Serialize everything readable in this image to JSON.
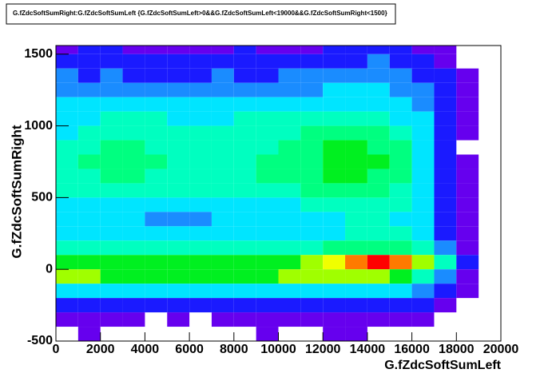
{
  "chart_data": {
    "type": "heatmap",
    "title": "G.fZdcSoftSumRight:G.fZdcSoftSumLeft {G.fZdcSoftSumLeft>0&&G.fZdcSoftSumLeft<19000&&G.fZdcSoftSumRight<1500}",
    "x_label": "G.fZdcSoftSumLeft",
    "y_label": "G.fZdcSoftSumRight",
    "xlim": [
      0,
      20000
    ],
    "ylim": [
      -500,
      1560
    ],
    "xticks": [
      0,
      2000,
      4000,
      6000,
      8000,
      10000,
      12000,
      14000,
      16000,
      18000,
      20000
    ],
    "yticks": [
      -500,
      0,
      500,
      1000,
      1500
    ],
    "xbins": [
      0,
      1000,
      2000,
      3000,
      4000,
      5000,
      6000,
      7000,
      8000,
      9000,
      10000,
      11000,
      12000,
      13000,
      14000,
      15000,
      16000,
      17000,
      18000,
      19000
    ],
    "ybins": [
      1560,
      1500,
      1400,
      1300,
      1200,
      1100,
      1000,
      900,
      800,
      700,
      600,
      500,
      400,
      300,
      200,
      100,
      0,
      -100,
      -200,
      -300,
      -400,
      -500
    ],
    "zlim": [
      0,
      11
    ],
    "palette": [
      "#ffffff",
      "#6600ee",
      "#1a1aff",
      "#1a8cff",
      "#00e5ff",
      "#00ffc0",
      "#00ff80",
      "#00f020",
      "#a0ff00",
      "#f0ff00",
      "#ff7a00",
      "#ff0000"
    ],
    "z": [
      [
        1,
        2,
        2,
        1,
        1,
        1,
        1,
        1,
        2,
        1,
        1,
        1,
        2,
        2,
        2,
        2,
        1,
        1,
        0
      ],
      [
        2,
        2,
        2,
        2,
        2,
        2,
        2,
        2,
        2,
        2,
        2,
        2,
        2,
        2,
        3,
        2,
        2,
        1,
        0
      ],
      [
        3,
        2,
        3,
        2,
        2,
        2,
        2,
        3,
        2,
        2,
        3,
        3,
        3,
        3,
        3,
        3,
        2,
        2,
        1
      ],
      [
        3,
        3,
        3,
        3,
        3,
        3,
        3,
        3,
        3,
        3,
        3,
        3,
        4,
        4,
        4,
        3,
        3,
        2,
        1
      ],
      [
        4,
        4,
        4,
        4,
        4,
        4,
        4,
        4,
        4,
        4,
        4,
        4,
        4,
        4,
        4,
        4,
        3,
        2,
        1
      ],
      [
        4,
        4,
        5,
        5,
        5,
        4,
        4,
        4,
        5,
        5,
        5,
        5,
        5,
        5,
        5,
        4,
        4,
        2,
        1
      ],
      [
        4,
        5,
        5,
        5,
        5,
        5,
        5,
        5,
        5,
        5,
        5,
        6,
        6,
        6,
        6,
        5,
        4,
        2,
        1
      ],
      [
        5,
        5,
        6,
        6,
        5,
        5,
        5,
        5,
        5,
        5,
        6,
        6,
        7,
        7,
        6,
        6,
        4,
        2,
        0
      ],
      [
        5,
        6,
        6,
        6,
        6,
        5,
        5,
        5,
        5,
        6,
        6,
        6,
        7,
        7,
        7,
        6,
        4,
        2,
        1
      ],
      [
        5,
        5,
        6,
        6,
        5,
        5,
        5,
        5,
        5,
        6,
        6,
        6,
        7,
        7,
        6,
        6,
        4,
        2,
        1
      ],
      [
        5,
        5,
        5,
        5,
        5,
        5,
        5,
        5,
        5,
        5,
        5,
        6,
        6,
        6,
        6,
        5,
        4,
        2,
        1
      ],
      [
        4,
        4,
        4,
        4,
        4,
        4,
        4,
        4,
        4,
        4,
        4,
        5,
        5,
        5,
        5,
        5,
        4,
        2,
        1
      ],
      [
        4,
        4,
        4,
        4,
        3,
        3,
        3,
        4,
        4,
        4,
        4,
        4,
        4,
        5,
        5,
        4,
        4,
        2,
        1
      ],
      [
        4,
        4,
        4,
        4,
        4,
        4,
        4,
        4,
        4,
        4,
        4,
        4,
        4,
        5,
        5,
        5,
        4,
        2,
        1
      ],
      [
        5,
        5,
        5,
        5,
        5,
        5,
        5,
        5,
        5,
        5,
        5,
        5,
        6,
        6,
        6,
        6,
        5,
        3,
        1
      ],
      [
        7,
        7,
        7,
        7,
        7,
        7,
        7,
        7,
        7,
        7,
        7,
        8,
        9,
        10,
        11,
        10,
        8,
        5,
        2
      ],
      [
        8,
        8,
        7,
        7,
        7,
        7,
        7,
        7,
        7,
        7,
        8,
        8,
        8,
        8,
        8,
        7,
        5,
        3,
        1
      ],
      [
        4,
        4,
        4,
        4,
        4,
        4,
        4,
        4,
        4,
        4,
        4,
        4,
        4,
        4,
        4,
        4,
        3,
        2,
        1
      ],
      [
        2,
        2,
        2,
        2,
        2,
        2,
        2,
        2,
        2,
        2,
        2,
        2,
        2,
        2,
        2,
        2,
        2,
        1,
        0
      ],
      [
        1,
        1,
        1,
        1,
        0,
        1,
        0,
        1,
        1,
        1,
        1,
        1,
        1,
        1,
        1,
        1,
        1,
        0,
        0
      ],
      [
        0,
        1,
        0,
        0,
        0,
        0,
        0,
        0,
        0,
        1,
        0,
        0,
        1,
        1,
        0,
        0,
        0,
        0,
        0
      ]
    ]
  }
}
